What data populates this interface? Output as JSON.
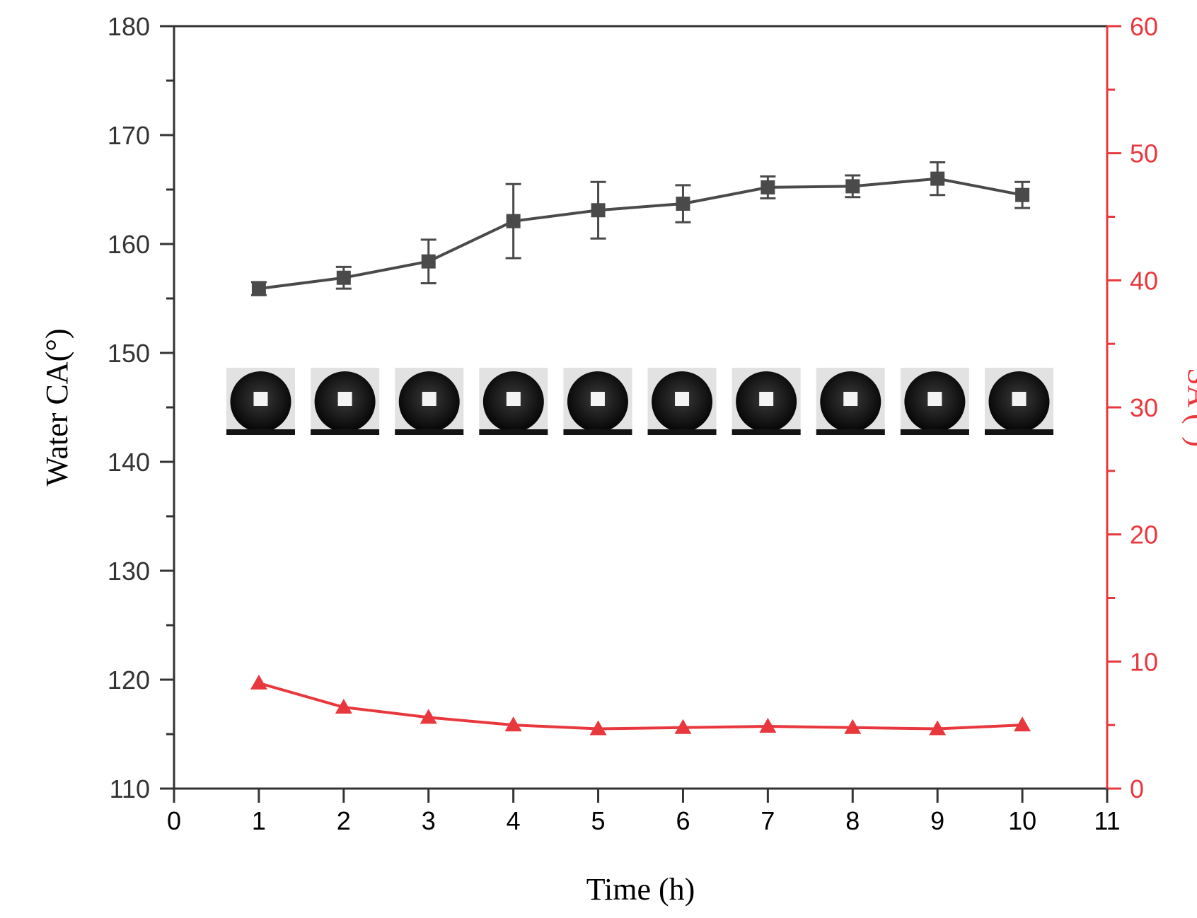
{
  "chart_data": {
    "type": "line",
    "xlabel": "Time (h)",
    "ylabel": "Water CA(°)",
    "y2label": "SA (°)",
    "xlim": [
      0,
      11
    ],
    "ylim": [
      110,
      180
    ],
    "y2lim": [
      0,
      60
    ],
    "xticks": [
      0,
      1,
      2,
      3,
      4,
      5,
      6,
      7,
      8,
      9,
      10,
      11
    ],
    "yticks": [
      110,
      120,
      130,
      140,
      150,
      160,
      170,
      180
    ],
    "y2ticks": [
      0,
      10,
      20,
      30,
      40,
      50,
      60
    ],
    "grid": false,
    "legend": "none",
    "series": [
      {
        "axis": "left",
        "marker": "square",
        "color": "#4a4a4a",
        "x": [
          1,
          2,
          3,
          4,
          5,
          6,
          7,
          8,
          9,
          10
        ],
        "y": [
          155.9,
          156.9,
          158.4,
          162.1,
          163.1,
          163.7,
          165.2,
          165.3,
          166.0,
          164.5
        ],
        "error": [
          0.6,
          1.0,
          2.0,
          3.4,
          2.6,
          1.7,
          1.0,
          1.0,
          1.5,
          1.2
        ]
      },
      {
        "axis": "right",
        "marker": "triangle",
        "color": "#e8383d",
        "x": [
          1,
          2,
          3,
          4,
          5,
          6,
          7,
          8,
          9,
          10
        ],
        "y": [
          8.3,
          6.4,
          5.6,
          5.0,
          4.7,
          4.8,
          4.9,
          4.8,
          4.7,
          5.0
        ]
      }
    ],
    "insets": {
      "description": "water droplet contact angle photos",
      "count": 10
    }
  }
}
